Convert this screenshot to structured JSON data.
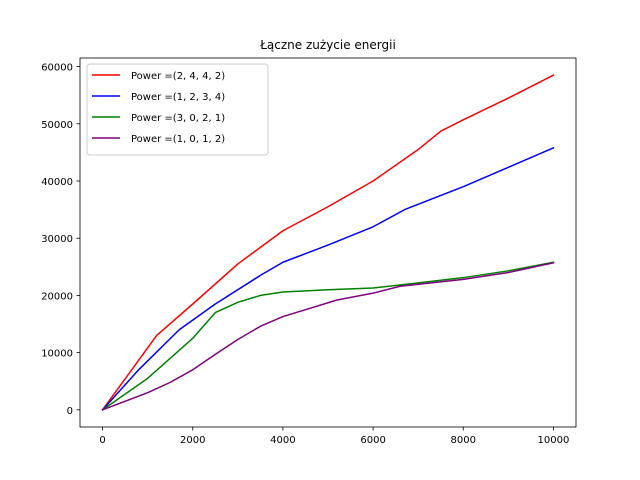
{
  "chart_data": {
    "type": "line",
    "title": "Łączne zużycie energii",
    "xlabel": "",
    "ylabel": "",
    "xlim": [
      -500,
      10500
    ],
    "ylim": [
      -3000,
      61500
    ],
    "xticks": [
      0,
      2000,
      4000,
      6000,
      8000,
      10000
    ],
    "xtick_labels": [
      "0",
      "2000",
      "4000",
      "6000",
      "8000",
      "10000"
    ],
    "yticks": [
      0,
      10000,
      20000,
      30000,
      40000,
      50000,
      60000
    ],
    "ytick_labels": [
      "0",
      "10000",
      "20000",
      "30000",
      "40000",
      "50000",
      "60000"
    ],
    "grid": false,
    "legend_position": "top-left",
    "series": [
      {
        "name": "Power =(2, 4, 4, 2)",
        "color": "#ff0000",
        "points": [
          [
            0,
            0
          ],
          [
            600,
            6500
          ],
          [
            1200,
            13000
          ],
          [
            2000,
            18500
          ],
          [
            3000,
            25500
          ],
          [
            4000,
            31300
          ],
          [
            5000,
            35500
          ],
          [
            6000,
            40000
          ],
          [
            7000,
            45500
          ],
          [
            7500,
            48700
          ],
          [
            8000,
            50700
          ],
          [
            9000,
            54500
          ],
          [
            10000,
            58500
          ]
        ]
      },
      {
        "name": "Power =(1, 2, 3, 4)",
        "color": "#0000ff",
        "points": [
          [
            0,
            0
          ],
          [
            800,
            7000
          ],
          [
            1700,
            14000
          ],
          [
            2500,
            18500
          ],
          [
            3500,
            23500
          ],
          [
            4000,
            25800
          ],
          [
            5000,
            28800
          ],
          [
            6000,
            32000
          ],
          [
            6700,
            35000
          ],
          [
            8000,
            39000
          ],
          [
            9000,
            42400
          ],
          [
            10000,
            45800
          ]
        ]
      },
      {
        "name": "Power =(3, 0, 2, 1)",
        "color": "#008000",
        "points": [
          [
            0,
            0
          ],
          [
            1000,
            5500
          ],
          [
            2000,
            12500
          ],
          [
            2500,
            17000
          ],
          [
            3000,
            18800
          ],
          [
            3500,
            20000
          ],
          [
            4000,
            20600
          ],
          [
            5000,
            21000
          ],
          [
            6000,
            21300
          ],
          [
            7000,
            22200
          ],
          [
            8000,
            23100
          ],
          [
            9000,
            24300
          ],
          [
            10000,
            25800
          ]
        ]
      },
      {
        "name": "Power =(1, 0, 1, 2)",
        "color": "#800080",
        "points": [
          [
            0,
            0
          ],
          [
            1000,
            3000
          ],
          [
            1500,
            4800
          ],
          [
            2000,
            7000
          ],
          [
            2500,
            9700
          ],
          [
            3000,
            12300
          ],
          [
            3500,
            14600
          ],
          [
            4000,
            16300
          ],
          [
            4500,
            17500
          ],
          [
            5200,
            19200
          ],
          [
            6000,
            20400
          ],
          [
            6600,
            21600
          ],
          [
            8000,
            22800
          ],
          [
            9000,
            24000
          ],
          [
            10000,
            25700
          ]
        ]
      }
    ]
  }
}
